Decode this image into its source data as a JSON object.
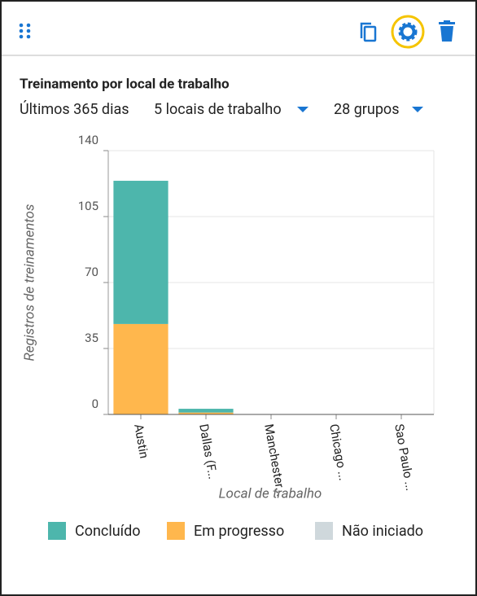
{
  "header": {
    "title": "Treinamento por local de trabalho"
  },
  "filters": [
    "Últimos 365 dias",
    "5 locais de trabalho",
    "28 grupos"
  ],
  "chart_data": {
    "type": "stacked-bar",
    "categories": [
      "Austin",
      "Dallas (F...",
      "Manchester...",
      "Chicago ...",
      "Sao Paulo ..."
    ],
    "series": [
      {
        "name": "Concluído",
        "color": "#4db6ac",
        "values": [
          76,
          2,
          0,
          0,
          0
        ]
      },
      {
        "name": "Em progresso",
        "color": "#ffb74d",
        "values": [
          48,
          1,
          0,
          0,
          0
        ]
      },
      {
        "name": "Não iniciado",
        "color": "#cfd8dc",
        "values": [
          0,
          0,
          0,
          0,
          0
        ]
      }
    ],
    "y_label": "Registros de treinamentos",
    "x_label": "Local de trabalho",
    "ylim": [
      0,
      140
    ],
    "yticks": [
      0,
      35,
      70,
      105,
      140
    ],
    "grid": true,
    "legend": "bottom"
  }
}
